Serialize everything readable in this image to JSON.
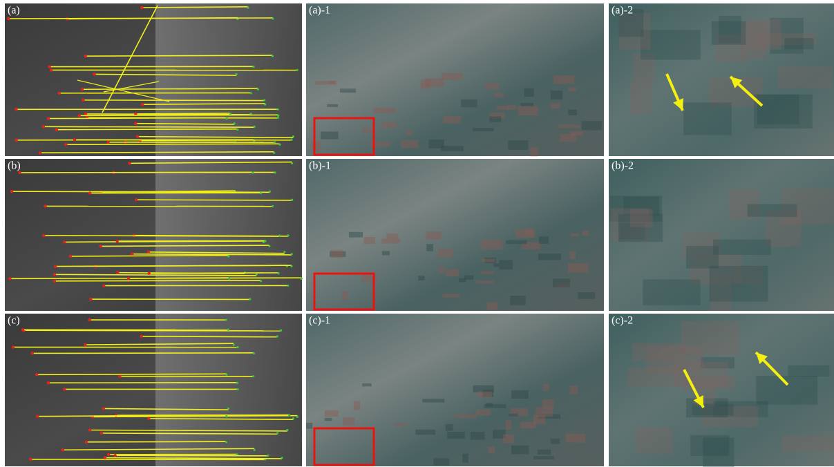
{
  "rows": [
    {
      "labels": [
        "(a)",
        "(a)-1",
        "(a)-2"
      ]
    },
    {
      "labels": [
        "(b)",
        "(b)-1",
        "(b)-2"
      ]
    },
    {
      "labels": [
        "(c)",
        "(c)-1",
        "(c)-2"
      ]
    }
  ]
}
